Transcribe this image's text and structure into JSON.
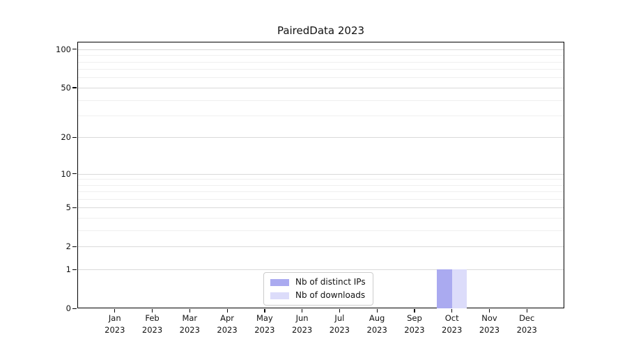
{
  "figure": {
    "background": "#ffffff",
    "spine_color": "#000000"
  },
  "chart_data": {
    "type": "bar",
    "title": "PairedData 2023",
    "xlabel": "",
    "ylabel": "",
    "categories": [
      "Jan 2023",
      "Feb 2023",
      "Mar 2023",
      "Apr 2023",
      "May 2023",
      "Jun 2023",
      "Jul 2023",
      "Aug 2023",
      "Sep 2023",
      "Oct 2023",
      "Nov 2023",
      "Dec 2023"
    ],
    "series": [
      {
        "name": "Nb of distinct IPs",
        "color": "#aaaaf0",
        "values": [
          0,
          0,
          0,
          0,
          0,
          0,
          0,
          0,
          0,
          1,
          0,
          0
        ]
      },
      {
        "name": "Nb of downloads",
        "color": "#dcdcfa",
        "values": [
          0,
          0,
          0,
          0,
          0,
          0,
          0,
          0,
          0,
          1,
          0,
          0
        ]
      }
    ],
    "y_axis": {
      "scale": "log1p",
      "range": [
        0,
        100
      ],
      "ticks": [
        0,
        1,
        2,
        5,
        10,
        20,
        50,
        100
      ],
      "minor_ticks": [
        3,
        4,
        6,
        7,
        8,
        9,
        30,
        40,
        60,
        70,
        80,
        90
      ]
    },
    "x_axis": {
      "tick_label_lines": 2
    },
    "grid": {
      "major_color": "#d9d9d9",
      "minor_color": "#efefef",
      "on": true
    },
    "legend": {
      "position": "lower center",
      "entries": [
        "Nb of distinct IPs",
        "Nb of downloads"
      ]
    }
  }
}
